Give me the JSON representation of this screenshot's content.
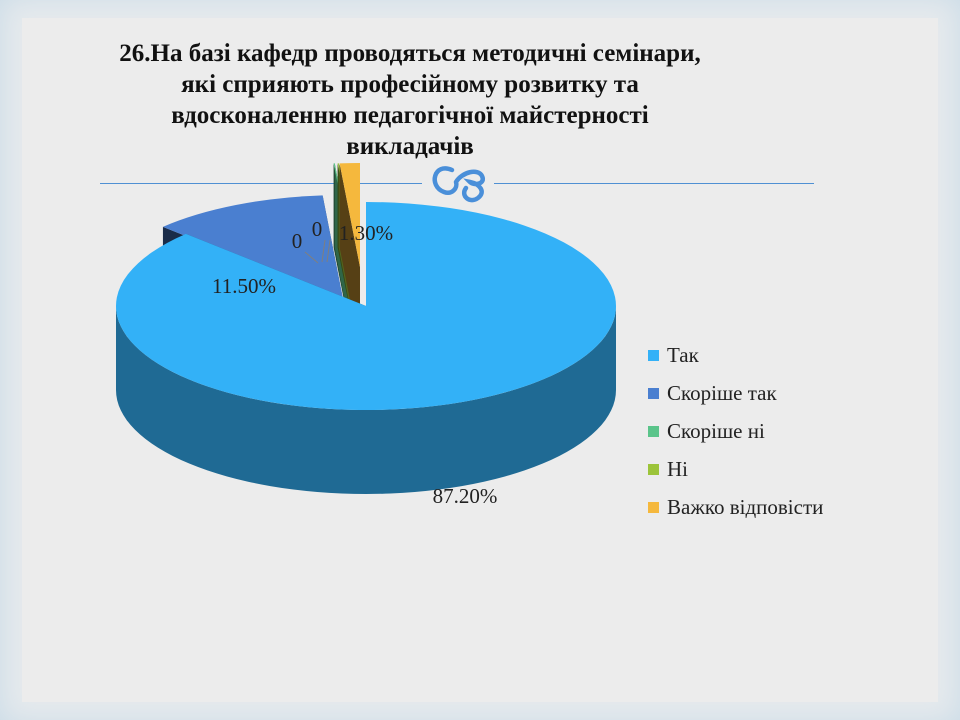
{
  "title_lines": [
    "26.На базі кафедр проводяться методичні семінари,",
    "які сприяють професійному розвитку та",
    "вдосконаленню педагогічної майстерності",
    "викладачів"
  ],
  "ornament_glyph": "ଓ",
  "chart_data": {
    "type": "pie",
    "categories": [
      "Так",
      "Скоріше так",
      "Скоріше ні",
      "Ні",
      "Важко відповісти"
    ],
    "values": [
      87.2,
      11.5,
      0,
      0,
      1.3
    ],
    "data_labels": [
      "87.20%",
      "11.50%",
      "0",
      "0",
      "1.30%"
    ],
    "colors": [
      "#33b1f7",
      "#4a7fd0",
      "#5ac48a",
      "#9cc43a",
      "#f5b83d"
    ],
    "three_d": true,
    "exploded": true,
    "legend_position": "right"
  }
}
